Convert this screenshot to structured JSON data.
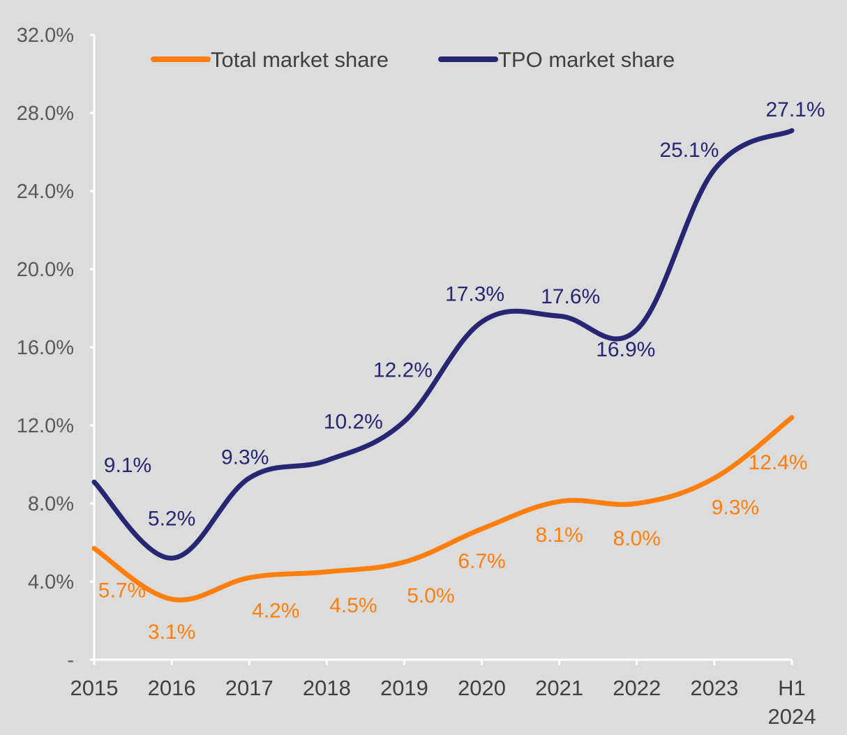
{
  "chart_data": {
    "type": "line",
    "categories": [
      "2015",
      "2016",
      "2017",
      "2018",
      "2019",
      "2020",
      "2021",
      "2022",
      "2023",
      "H1 2024"
    ],
    "y_tick_labels": [
      "-",
      "4.0%",
      "8.0%",
      "12.0%",
      "16.0%",
      "20.0%",
      "24.0%",
      "28.0%",
      "32.0%"
    ],
    "ylim": [
      0,
      32
    ],
    "grid": false,
    "legend_position": "top",
    "series": [
      {
        "name": "Total market share",
        "color": "#ff7f0e",
        "values": [
          5.7,
          3.1,
          4.2,
          4.5,
          5.0,
          6.7,
          8.1,
          8.0,
          9.3,
          12.4
        ],
        "labels": [
          "5.7%",
          "3.1%",
          "4.2%",
          "4.5%",
          "5.0%",
          "6.7%",
          "8.1%",
          "8.0%",
          "9.3%",
          "12.4%"
        ]
      },
      {
        "name": "TPO market share",
        "color": "#262673",
        "values": [
          9.1,
          5.2,
          9.3,
          10.2,
          12.2,
          17.3,
          17.6,
          16.9,
          25.1,
          27.1
        ],
        "labels": [
          "9.1%",
          "5.2%",
          "9.3%",
          "10.2%",
          "12.2%",
          "17.3%",
          "17.6%",
          "16.9%",
          "25.1%",
          "27.1%"
        ]
      }
    ]
  }
}
